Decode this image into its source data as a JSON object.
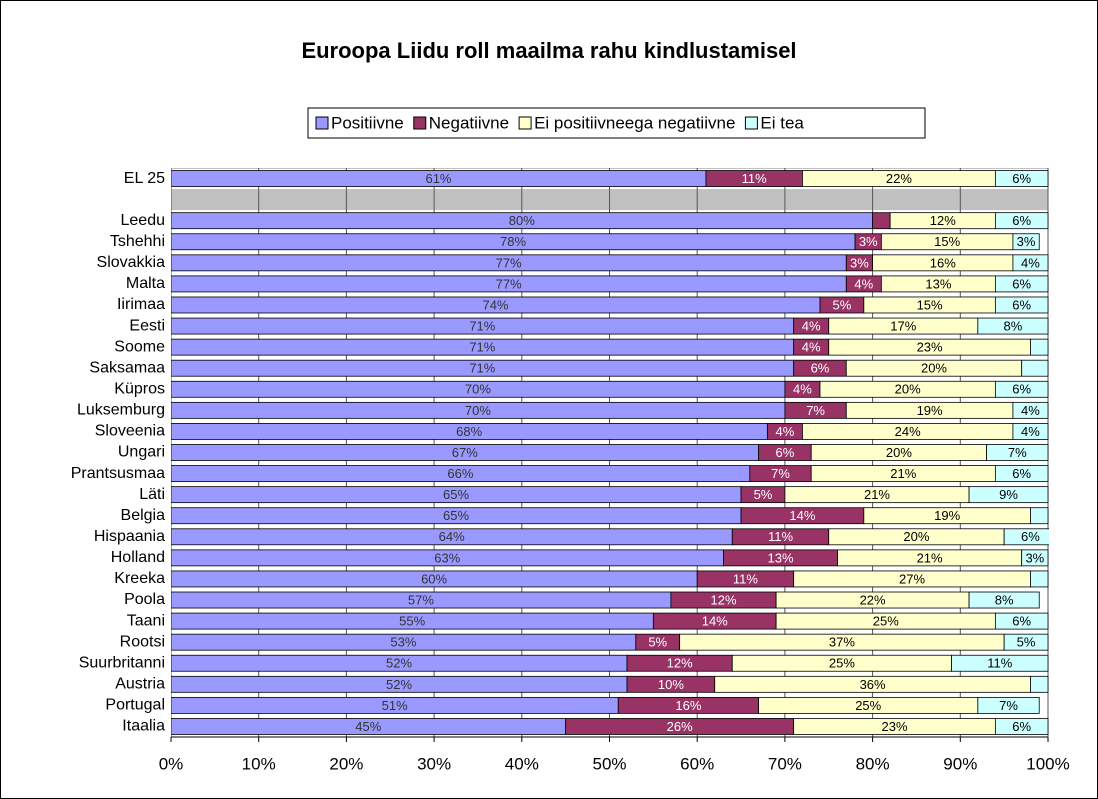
{
  "chart_data": {
    "type": "stacked_bar_horizontal",
    "title": "Euroopa Liidu roll maailma rahu kindlustamisel",
    "categories": [
      "EL 25",
      null,
      "Leedu",
      "Tshehhi",
      "Slovakkia",
      "Malta",
      "Iirimaa",
      "Eesti",
      "Soome",
      "Saksamaa",
      "Küpros",
      "Luksemburg",
      "Sloveenia",
      "Ungari",
      "Prantsusmaa",
      "Läti",
      "Belgia",
      "Hispaania",
      "Holland",
      "Kreeka",
      "Poola",
      "Taani",
      "Rootsi",
      "Suurbritanni",
      "Austria",
      "Portugal",
      "Itaalia"
    ],
    "series": [
      {
        "name": "Positiivne",
        "color": "#9999ff",
        "text_color": "#333333",
        "values": [
          61,
          null,
          80,
          78,
          77,
          77,
          74,
          71,
          71,
          71,
          70,
          70,
          68,
          67,
          66,
          65,
          65,
          64,
          63,
          60,
          57,
          55,
          53,
          52,
          52,
          51,
          45
        ],
        "value_labels": [
          "61%",
          null,
          "80%",
          "78%",
          "77%",
          "77%",
          "74%",
          "71%",
          "71%",
          "71%",
          "70%",
          "70%",
          "68%",
          "67%",
          "66%",
          "65%",
          "65%",
          "64%",
          "63%",
          "60%",
          "57%",
          "55%",
          "53%",
          "52%",
          "52%",
          "51%",
          "45%"
        ]
      },
      {
        "name": "Negatiivne",
        "color": "#993366",
        "text_color": "#ffffff",
        "values": [
          11,
          null,
          2,
          3,
          3,
          4,
          5,
          4,
          4,
          6,
          4,
          7,
          4,
          6,
          7,
          5,
          14,
          11,
          13,
          11,
          12,
          14,
          5,
          12,
          10,
          16,
          26
        ],
        "value_labels": [
          "11%",
          null,
          null,
          "3%",
          "3%",
          "4%",
          "5%",
          "4%",
          "4%",
          "6%",
          "4%",
          "7%",
          "4%",
          "6%",
          "7%",
          "5%",
          "14%",
          "11%",
          "13%",
          "11%",
          "12%",
          "14%",
          "5%",
          "12%",
          "10%",
          "16%",
          "26%"
        ]
      },
      {
        "name": "Ei positiivneega negatiivne",
        "color": "#ffffcc",
        "text_color": "#000000",
        "values": [
          22,
          null,
          12,
          15,
          16,
          13,
          15,
          17,
          23,
          20,
          20,
          19,
          24,
          20,
          21,
          21,
          19,
          20,
          21,
          27,
          22,
          25,
          37,
          25,
          36,
          25,
          23
        ],
        "value_labels": [
          "22%",
          null,
          "12%",
          "15%",
          "16%",
          "13%",
          "15%",
          "17%",
          "23%",
          "20%",
          "20%",
          "19%",
          "24%",
          "20%",
          "21%",
          "21%",
          "19%",
          "20%",
          "21%",
          "27%",
          "22%",
          "25%",
          "37%",
          "25%",
          "36%",
          "25%",
          "23%"
        ]
      },
      {
        "name": "Ei tea",
        "color": "#ccffff",
        "text_color": "#000000",
        "values": [
          6,
          null,
          6,
          3,
          4,
          6,
          6,
          8,
          2,
          3,
          6,
          4,
          4,
          7,
          6,
          9,
          2,
          6,
          3,
          2,
          8,
          6,
          5,
          11,
          2,
          7,
          6
        ],
        "value_labels": [
          "6%",
          null,
          "6%",
          "3%",
          "4%",
          "6%",
          "6%",
          "8%",
          null,
          null,
          "6%",
          "4%",
          "4%",
          "7%",
          "6%",
          "9%",
          null,
          "6%",
          "3%",
          null,
          "8%",
          "6%",
          "5%",
          "11%",
          null,
          "7%",
          "6%"
        ]
      }
    ],
    "xlim": [
      0,
      100
    ],
    "xticks": [
      {
        "value": 0,
        "label": "0%"
      },
      {
        "value": 10,
        "label": "10%"
      },
      {
        "value": 20,
        "label": "20%"
      },
      {
        "value": 30,
        "label": "30%"
      },
      {
        "value": 40,
        "label": "40%"
      },
      {
        "value": 50,
        "label": "50%"
      },
      {
        "value": 60,
        "label": "60%"
      },
      {
        "value": 70,
        "label": "70%"
      },
      {
        "value": 80,
        "label": "80%"
      },
      {
        "value": 90,
        "label": "90%"
      },
      {
        "value": 100,
        "label": "100%"
      }
    ],
    "grid": true,
    "legend": "top"
  }
}
